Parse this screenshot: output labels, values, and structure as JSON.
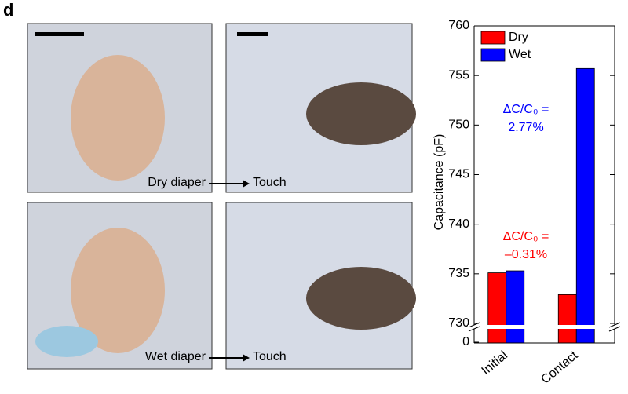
{
  "panel_label": "d",
  "photos": {
    "top_left_caption": "Dry diaper",
    "top_right_caption": "Touch",
    "bottom_left_caption": "Wet diaper",
    "bottom_right_caption": "Touch"
  },
  "chart_data": {
    "type": "bar",
    "ylabel": "Capacitance (pF)",
    "categories": [
      "Initial",
      "Contact"
    ],
    "series": [
      {
        "name": "Dry",
        "color": "#ff0000",
        "values": [
          735.1,
          732.9
        ]
      },
      {
        "name": "Wet",
        "color": "#0000ff",
        "values": [
          735.3,
          755.7
        ]
      }
    ],
    "ylim": [
      730,
      760
    ],
    "yticks": [
      730,
      735,
      740,
      745,
      750,
      755,
      760
    ],
    "lower_ticks": [
      0
    ],
    "legend": "upper left",
    "annotations": [
      {
        "lines": [
          "ΔC/C₀ =",
          "2.77%"
        ],
        "color": "#0000ff"
      },
      {
        "lines": [
          "ΔC/C₀ =",
          "–0.31%"
        ],
        "color": "#ff0000"
      }
    ]
  }
}
